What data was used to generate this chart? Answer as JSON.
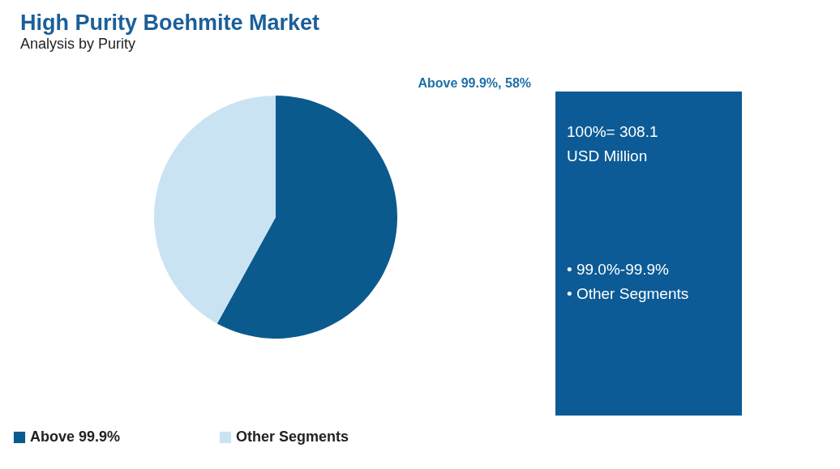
{
  "chart_data": {
    "type": "pie",
    "title": "High Purity Boehmite Market",
    "subtitle": "Analysis by Purity",
    "categories": [
      "Above 99.9%",
      "Other Segments"
    ],
    "values": [
      58,
      42
    ],
    "colors": [
      "#0b5a8e",
      "#c9e3f3"
    ],
    "legend": "bottom",
    "annotations": [
      "Above 99.9%, 58%",
      "100%= 308.1",
      "USD Million",
      "• 99.0%-99.9%",
      "• Other Segments"
    ]
  }
}
